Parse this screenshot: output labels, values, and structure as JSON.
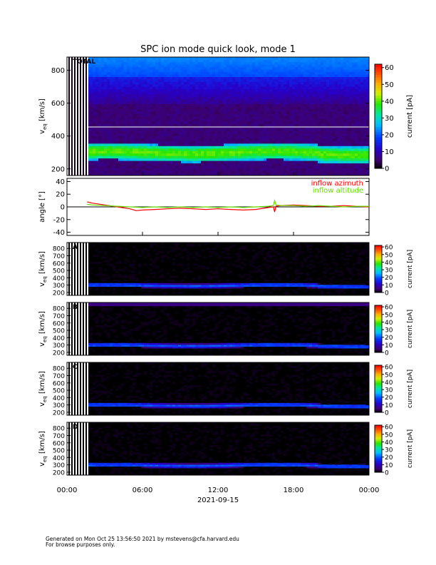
{
  "title": "SPC ion mode quick look, mode 1",
  "footer": {
    "line1": "Generated on Mon Oct 25 13:56:50 2021 by mstevens@cfa.harvard.edu",
    "line2": "For browse purposes only."
  },
  "colors": {
    "azimuth": "#ff0000",
    "altitude": "#66dd00",
    "grid_line": "#ffffff"
  },
  "chart_data": [
    {
      "type": "heatmap",
      "label": "TOTAL",
      "ylabel": "v_eq [km/s]",
      "ylabel_main": "v",
      "ylabel_sub": "eq",
      "ylabel_unit": "[km/s]",
      "ylim": [
        160,
        880
      ],
      "yticks": [
        200,
        400,
        600,
        800
      ],
      "colorbar": {
        "label": "current [pA]",
        "range": [
          0,
          62
        ],
        "ticks": [
          0,
          10,
          20,
          30,
          40,
          50,
          60
        ]
      },
      "background": "blue",
      "reference_line_kms": 455,
      "beam_center_kms": 300,
      "beam_width_kms": 50
    },
    {
      "type": "line",
      "ylabel": "angle [°]",
      "ylim": [
        -45,
        45
      ],
      "yticks": [
        -40,
        -20,
        0,
        20,
        40
      ],
      "legend": [
        "inflow azimuth",
        "inflow altitude"
      ],
      "legend_position": "top-right",
      "series": [
        {
          "name": "inflow azimuth",
          "color": "#ff0000",
          "x_hours": [
            1.6,
            2,
            3,
            4,
            5,
            5.5,
            6,
            7,
            8,
            9,
            10,
            11,
            12,
            13,
            14,
            15,
            16,
            16.4,
            16.5,
            16.6,
            17,
            18,
            19,
            20,
            21,
            22,
            23,
            24
          ],
          "values": [
            8,
            6,
            3,
            0,
            -3,
            -6,
            -5,
            -4,
            -3,
            -2,
            -3,
            -4,
            -3,
            -4,
            -5,
            -4,
            -1,
            0,
            -8,
            1,
            2,
            3,
            2,
            1,
            1,
            2,
            1,
            0
          ]
        },
        {
          "name": "inflow altitude",
          "color": "#66dd00",
          "x_hours": [
            1.6,
            2,
            3,
            4,
            5,
            6,
            7,
            8,
            9,
            10,
            11,
            12,
            13,
            14,
            15,
            16,
            16.4,
            16.5,
            16.6,
            17,
            18,
            19,
            20,
            21,
            22,
            23,
            24
          ],
          "values": [
            4,
            3,
            2,
            1,
            0,
            -1,
            0,
            -1,
            0,
            -1,
            0,
            -1,
            0,
            -1,
            0,
            1,
            2,
            10,
            3,
            2,
            2,
            1,
            2,
            1,
            0,
            1,
            1
          ]
        }
      ]
    },
    {
      "type": "heatmap",
      "label": "A",
      "ylabel_main": "v",
      "ylabel_sub": "eq",
      "ylabel_unit": "[km/s]",
      "ylim": [
        160,
        880
      ],
      "yticks": [
        200,
        300,
        400,
        500,
        600,
        700,
        800
      ],
      "colorbar": {
        "label": "current [pA]",
        "range": [
          0,
          62
        ],
        "ticks": [
          0,
          10,
          20,
          30,
          40,
          50,
          60
        ]
      },
      "background": "black",
      "beam_center_kms": 295,
      "beam_width_kms": 30
    },
    {
      "type": "heatmap",
      "label": "B",
      "ylabel_main": "v",
      "ylabel_sub": "eq",
      "ylabel_unit": "[km/s]",
      "ylim": [
        160,
        880
      ],
      "yticks": [
        200,
        300,
        400,
        500,
        600,
        700,
        800
      ],
      "colorbar": {
        "label": "current [pA]",
        "range": [
          0,
          62
        ],
        "ticks": [
          0,
          10,
          20,
          30,
          40,
          50,
          60
        ]
      },
      "background": "black",
      "beam_center_kms": 295,
      "beam_width_kms": 30,
      "top_band_kms": 860
    },
    {
      "type": "heatmap",
      "label": "C",
      "ylabel_main": "v",
      "ylabel_sub": "eq",
      "ylabel_unit": "[km/s]",
      "ylim": [
        160,
        880
      ],
      "yticks": [
        200,
        300,
        400,
        500,
        600,
        700,
        800
      ],
      "colorbar": {
        "label": "current [pA]",
        "range": [
          0,
          62
        ],
        "ticks": [
          0,
          10,
          20,
          30,
          40,
          50,
          60
        ]
      },
      "background": "black",
      "beam_center_kms": 295,
      "beam_width_kms": 30
    },
    {
      "type": "heatmap",
      "label": "D",
      "ylabel_main": "v",
      "ylabel_sub": "eq",
      "ylabel_unit": "[km/s]",
      "ylim": [
        160,
        880
      ],
      "yticks": [
        200,
        300,
        400,
        500,
        600,
        700,
        800
      ],
      "colorbar": {
        "label": "current [pA]",
        "range": [
          0,
          62
        ],
        "ticks": [
          0,
          10,
          20,
          30,
          40,
          50,
          60
        ]
      },
      "background": "black",
      "beam_center_kms": 295,
      "beam_width_kms": 30
    }
  ],
  "xaxis": {
    "ticks": [
      "00:00",
      "06:00",
      "12:00",
      "18:00",
      "00:00"
    ],
    "tick_hours": [
      0,
      6,
      12,
      18,
      24
    ],
    "date": "2021-09-15",
    "range_hours": [
      0,
      24
    ]
  }
}
